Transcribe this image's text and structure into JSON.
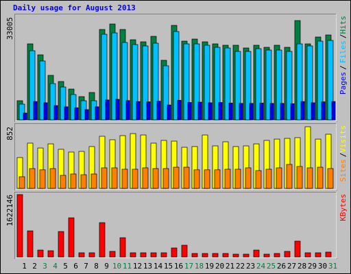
{
  "chart_data": [
    {
      "type": "bar",
      "title": "Daily usage for August 2013",
      "ylim": [
        0,
        33005
      ],
      "yticks": [
        33005
      ],
      "legend_separator": "/",
      "series": [
        {
          "name": "Hits",
          "color": "#008040",
          "values": [
            6160,
            24420,
            20900,
            14300,
            12320,
            9900,
            7480,
            8800,
            29040,
            30800,
            29040,
            25740,
            25080,
            26840,
            19140,
            30360,
            25300,
            25960,
            25080,
            24420,
            23980,
            23980,
            23100,
            23980,
            23320,
            23980,
            23320,
            31900,
            24420,
            26620,
            27280
          ]
        },
        {
          "name": "Files",
          "color": "#00c0ff",
          "values": [
            5060,
            22220,
            18920,
            11660,
            10560,
            8140,
            6160,
            6160,
            27500,
            27940,
            24860,
            24200,
            23760,
            24640,
            17380,
            28380,
            24420,
            24420,
            23980,
            23320,
            23100,
            22000,
            22000,
            22880,
            22440,
            22440,
            22000,
            24420,
            23760,
            25300,
            25520
          ]
        },
        {
          "name": "Pages",
          "color": "#0000ff",
          "values": [
            2200,
            5900,
            5500,
            4600,
            4200,
            3900,
            3300,
            4200,
            6400,
            6600,
            6200,
            5900,
            5800,
            6000,
            4800,
            6300,
            5600,
            5700,
            5500,
            5600,
            5400,
            5300,
            5300,
            5400,
            5300,
            5300,
            5200,
            5900,
            5500,
            5800,
            5900
          ]
        }
      ]
    },
    {
      "type": "bar",
      "ylim": [
        0,
        852
      ],
      "yticks": [
        852
      ],
      "legend_separator": "/",
      "series": [
        {
          "name": "Visits",
          "color": "#ffff00",
          "values": [
            426,
            625,
            558,
            615,
            540,
            502,
            511,
            578,
            720,
            672,
            729,
            757,
            738,
            625,
            663,
            653,
            568,
            578,
            738,
            587,
            644,
            578,
            587,
            615,
            663,
            681,
            691,
            701,
            852,
            681,
            748
          ]
        },
        {
          "name": "Sites",
          "color": "#ff8000",
          "values": [
            161,
            274,
            257,
            274,
            180,
            199,
            189,
            199,
            284,
            284,
            265,
            265,
            284,
            274,
            274,
            293,
            293,
            257,
            257,
            257,
            265,
            265,
            284,
            246,
            265,
            284,
            331,
            303,
            284,
            293,
            274
          ]
        }
      ]
    },
    {
      "type": "bar",
      "ylim": [
        0,
        1622146
      ],
      "yticks": [
        1622146
      ],
      "categories": [
        "1",
        "2",
        "3",
        "4",
        "5",
        "6",
        "7",
        "8",
        "9",
        "10",
        "11",
        "12",
        "13",
        "14",
        "15",
        "16",
        "17",
        "18",
        "19",
        "20",
        "21",
        "22",
        "23",
        "24",
        "25",
        "26",
        "27",
        "28",
        "29",
        "30",
        "31"
      ],
      "label_colors": [
        "#000000",
        "#000000",
        "#008040",
        "#008040",
        "#000000",
        "#000000",
        "#000000",
        "#000000",
        "#000000",
        "#008040",
        "#008040",
        "#000000",
        "#000000",
        "#000000",
        "#000000",
        "#000000",
        "#008040",
        "#008040",
        "#000000",
        "#000000",
        "#000000",
        "#000000",
        "#000000",
        "#008040",
        "#008040",
        "#000000",
        "#000000",
        "#000000",
        "#000000",
        "#000000",
        "#008040"
      ],
      "series": [
        {
          "name": "KBytes",
          "color": "#ff0000",
          "values": [
            1622146,
            677000,
            178000,
            160000,
            660000,
            1016000,
            107000,
            107000,
            891000,
            143000,
            499000,
            107000,
            107000,
            107000,
            107000,
            232000,
            303000,
            89000,
            89000,
            89000,
            89000,
            71000,
            71000,
            178000,
            71000,
            89000,
            143000,
            410000,
            107000,
            107000,
            125000
          ]
        }
      ]
    }
  ]
}
